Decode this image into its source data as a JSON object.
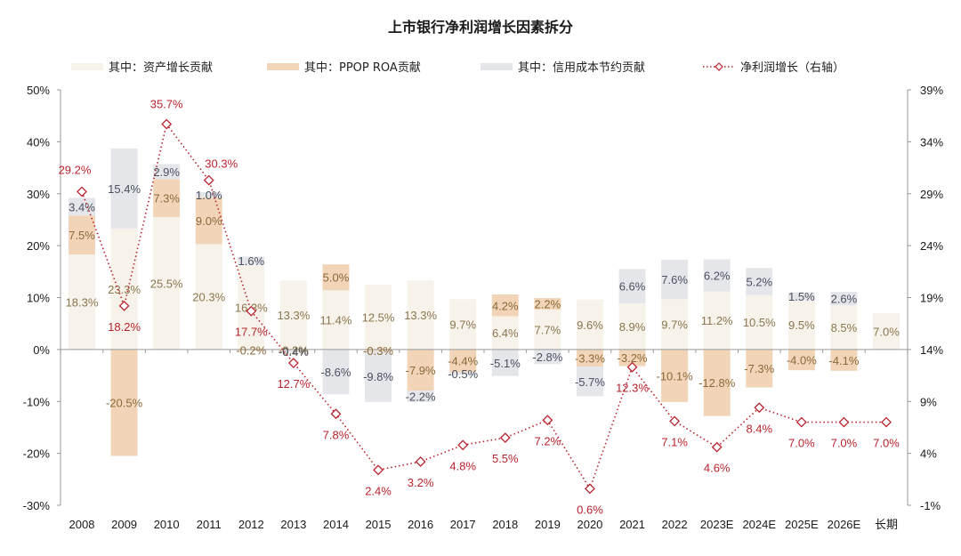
{
  "chart_data": {
    "type": "bar",
    "subtype": "stacked-bar-with-line-secondary-axis",
    "title": "上市银行净利润增长因素拆分",
    "categories": [
      "2008",
      "2009",
      "2010",
      "2011",
      "2012",
      "2013",
      "2014",
      "2015",
      "2016",
      "2017",
      "2018",
      "2019",
      "2020",
      "2021",
      "2022",
      "2023E",
      "2024E",
      "2025E",
      "2026E",
      "长期"
    ],
    "legend_position": "top",
    "series": [
      {
        "name": "其中：资产增长贡献",
        "kind": "bar",
        "axis": "left",
        "color": "#f7f3ea",
        "label_color": "#8a7650",
        "values": [
          18.3,
          23.3,
          25.5,
          20.3,
          16.3,
          13.3,
          11.4,
          12.5,
          13.3,
          9.7,
          6.4,
          7.7,
          9.6,
          8.9,
          9.7,
          11.2,
          10.5,
          9.5,
          8.5,
          7.0
        ]
      },
      {
        "name": "其中：PPOP ROA贡献",
        "kind": "bar",
        "axis": "left",
        "color": "#f2d5b8",
        "label_color": "#8a6a3a",
        "values": [
          7.5,
          -20.5,
          7.3,
          9.0,
          -0.2,
          -0.2,
          5.0,
          -0.3,
          -7.9,
          -4.4,
          4.2,
          2.2,
          -3.3,
          -3.2,
          -10.1,
          -12.8,
          -7.3,
          -4.0,
          -4.1,
          null
        ]
      },
      {
        "name": "其中：信用成本节约贡献",
        "kind": "bar",
        "axis": "left",
        "color": "#e5e6ea",
        "label_color": "#4a5060",
        "values": [
          3.4,
          15.4,
          2.9,
          1.0,
          1.6,
          -0.4,
          -8.6,
          -9.8,
          -2.2,
          -0.5,
          -5.1,
          -2.8,
          -5.7,
          6.6,
          7.6,
          6.2,
          5.2,
          1.5,
          2.6,
          null
        ]
      },
      {
        "name": "净利润增长（右轴）",
        "kind": "line",
        "axis": "right",
        "color": "#b8232e",
        "marker": "diamond",
        "line_style": "dotted",
        "values": [
          29.2,
          18.2,
          35.7,
          30.3,
          17.7,
          12.7,
          7.8,
          2.4,
          3.2,
          4.8,
          5.5,
          7.2,
          0.6,
          12.3,
          7.1,
          4.6,
          8.4,
          7.0,
          7.0,
          7.0
        ]
      }
    ],
    "y_left": {
      "ylim": [
        -30,
        50
      ],
      "ticks": [
        -30,
        -20,
        -10,
        0,
        10,
        20,
        30,
        40,
        50
      ],
      "tick_labels": [
        "-30%",
        "-20%",
        "-10%",
        "0%",
        "10%",
        "20%",
        "30%",
        "40%",
        "50%"
      ]
    },
    "y_right": {
      "ylim": [
        -1,
        39
      ],
      "ticks": [
        -1,
        4,
        9,
        14,
        19,
        24,
        29,
        34,
        39
      ],
      "tick_labels": [
        "-1%",
        "4%",
        "9%",
        "14%",
        "19%",
        "24%",
        "29%",
        "34%",
        "39%"
      ]
    },
    "xlabel": "",
    "ylabel": "",
    "grid": false
  }
}
